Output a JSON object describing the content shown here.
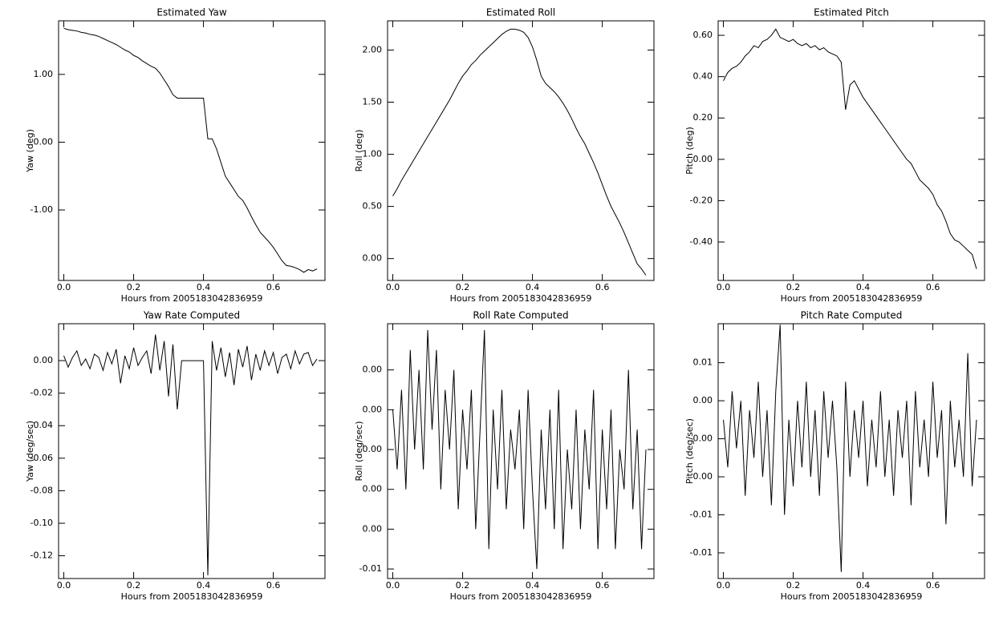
{
  "chart_data": [
    {
      "type": "line",
      "title": "Estimated Yaw",
      "xlabel": "Hours from 2005183042836959",
      "ylabel": "Yaw (deg)",
      "color": "#000000",
      "x": [
        0,
        0.0125,
        0.025,
        0.0375,
        0.05,
        0.0625,
        0.075,
        0.0875,
        0.1,
        0.1125,
        0.125,
        0.1375,
        0.15,
        0.1625,
        0.175,
        0.1875,
        0.2,
        0.2125,
        0.225,
        0.2375,
        0.25,
        0.2625,
        0.275,
        0.2875,
        0.3,
        0.3125,
        0.325,
        0.3375,
        0.35,
        0.3625,
        0.375,
        0.3875,
        0.4,
        0.4125,
        0.425,
        0.4375,
        0.45,
        0.4625,
        0.475,
        0.4875,
        0.5,
        0.5125,
        0.525,
        0.5375,
        0.55,
        0.5625,
        0.575,
        0.5875,
        0.6,
        0.6125,
        0.625,
        0.6375,
        0.65,
        0.6625,
        0.675,
        0.6875,
        0.7,
        0.7125,
        0.725
      ],
      "values": [
        1.68,
        1.66,
        1.65,
        1.64,
        1.62,
        1.61,
        1.59,
        1.58,
        1.56,
        1.53,
        1.5,
        1.47,
        1.44,
        1.4,
        1.36,
        1.33,
        1.28,
        1.25,
        1.2,
        1.16,
        1.12,
        1.09,
        1.02,
        0.92,
        0.82,
        0.7,
        0.65,
        0.65,
        0.65,
        0.65,
        0.65,
        0.65,
        0.65,
        0.05,
        0.05,
        -0.1,
        -0.3,
        -0.5,
        -0.6,
        -0.7,
        -0.8,
        -0.86,
        -0.97,
        -1.1,
        -1.22,
        -1.33,
        -1.4,
        -1.47,
        -1.55,
        -1.65,
        -1.75,
        -1.82,
        -1.83,
        -1.85,
        -1.88,
        -1.92,
        -1.88,
        -1.9,
        -1.87
      ],
      "xlim": [
        -0.015,
        0.748
      ],
      "xticks": [
        {
          "value": 0,
          "label": "0.0"
        },
        0.2,
        0.4,
        0.6
      ],
      "ylim": [
        -2.04,
        1.79
      ],
      "yticks": [
        {
          "value": 1,
          "label": "1.00"
        },
        {
          "value": 0,
          "label": "0.00"
        },
        {
          "value": -1,
          "label": "-1.00"
        }
      ]
    },
    {
      "type": "line",
      "title": "Estimated Roll",
      "xlabel": "Hours from 2005183042836959",
      "ylabel": "Roll (deg)",
      "color": "#000000",
      "x": [
        0,
        0.0125,
        0.025,
        0.0375,
        0.05,
        0.0625,
        0.075,
        0.0875,
        0.1,
        0.1125,
        0.125,
        0.1375,
        0.15,
        0.1625,
        0.175,
        0.1875,
        0.2,
        0.2125,
        0.225,
        0.2375,
        0.25,
        0.2625,
        0.275,
        0.2875,
        0.3,
        0.3125,
        0.325,
        0.3375,
        0.35,
        0.3625,
        0.375,
        0.3875,
        0.4,
        0.4125,
        0.425,
        0.4375,
        0.45,
        0.4625,
        0.475,
        0.4875,
        0.5,
        0.5125,
        0.525,
        0.5375,
        0.55,
        0.5625,
        0.575,
        0.5875,
        0.6,
        0.6125,
        0.625,
        0.6375,
        0.65,
        0.6625,
        0.675,
        0.6875,
        0.7,
        0.7125,
        0.725
      ],
      "values": [
        0.6,
        0.67,
        0.75,
        0.82,
        0.89,
        0.96,
        1.03,
        1.1,
        1.17,
        1.24,
        1.31,
        1.38,
        1.45,
        1.52,
        1.6,
        1.68,
        1.75,
        1.8,
        1.86,
        1.9,
        1.95,
        1.99,
        2.03,
        2.07,
        2.11,
        2.15,
        2.18,
        2.2,
        2.2,
        2.19,
        2.17,
        2.12,
        2.03,
        1.9,
        1.75,
        1.68,
        1.64,
        1.6,
        1.55,
        1.49,
        1.42,
        1.34,
        1.25,
        1.17,
        1.1,
        1.01,
        0.92,
        0.82,
        0.71,
        0.6,
        0.5,
        0.42,
        0.34,
        0.25,
        0.15,
        0.05,
        -0.05,
        -0.1,
        -0.16
      ],
      "xlim": [
        -0.015,
        0.748
      ],
      "xticks": [
        {
          "value": 0,
          "label": "0.0"
        },
        0.2,
        0.4,
        0.6
      ],
      "ylim": [
        -0.21,
        2.28
      ],
      "yticks": [
        {
          "value": 2,
          "label": "2.00"
        },
        {
          "value": 1.5,
          "label": "1.50"
        },
        {
          "value": 1,
          "label": "1.00"
        },
        {
          "value": 0.5,
          "label": "0.50"
        },
        {
          "value": 0,
          "label": "0.00"
        }
      ]
    },
    {
      "type": "line",
      "title": "Estimated Pitch",
      "xlabel": "Hours from 2005183042836959",
      "ylabel": "Pitch (deg)",
      "color": "#000000",
      "x": [
        0,
        0.0125,
        0.025,
        0.0375,
        0.05,
        0.0625,
        0.075,
        0.0875,
        0.1,
        0.1125,
        0.125,
        0.1375,
        0.15,
        0.1625,
        0.175,
        0.1875,
        0.2,
        0.2125,
        0.225,
        0.2375,
        0.25,
        0.2625,
        0.275,
        0.2875,
        0.3,
        0.3125,
        0.325,
        0.3375,
        0.35,
        0.3625,
        0.375,
        0.3875,
        0.4,
        0.4125,
        0.425,
        0.4375,
        0.45,
        0.4625,
        0.475,
        0.4875,
        0.5,
        0.5125,
        0.525,
        0.5375,
        0.55,
        0.5625,
        0.575,
        0.5875,
        0.6,
        0.6125,
        0.625,
        0.6375,
        0.65,
        0.6625,
        0.675,
        0.6875,
        0.7,
        0.7125,
        0.725
      ],
      "values": [
        0.38,
        0.42,
        0.44,
        0.45,
        0.47,
        0.5,
        0.52,
        0.55,
        0.54,
        0.57,
        0.58,
        0.6,
        0.63,
        0.59,
        0.58,
        0.57,
        0.58,
        0.56,
        0.55,
        0.56,
        0.54,
        0.55,
        0.53,
        0.54,
        0.52,
        0.51,
        0.5,
        0.47,
        0.24,
        0.36,
        0.38,
        0.34,
        0.3,
        0.27,
        0.24,
        0.21,
        0.18,
        0.15,
        0.12,
        0.09,
        0.06,
        0.03,
        0.0,
        -0.02,
        -0.06,
        -0.1,
        -0.12,
        -0.14,
        -0.17,
        -0.22,
        -0.25,
        -0.3,
        -0.36,
        -0.39,
        -0.4,
        -0.42,
        -0.44,
        -0.46,
        -0.53
      ],
      "xlim": [
        -0.015,
        0.748
      ],
      "xticks": [
        {
          "value": 0,
          "label": "0.0"
        },
        0.2,
        0.4,
        0.6
      ],
      "ylim": [
        -0.586,
        0.67
      ],
      "yticks": [
        {
          "value": 0.6,
          "label": "0.60"
        },
        {
          "value": 0.4,
          "label": "0.40"
        },
        {
          "value": 0.2,
          "label": "0.20"
        },
        {
          "value": 0,
          "label": "0.00"
        },
        {
          "value": -0.2,
          "label": "-0.20"
        },
        {
          "value": -0.4,
          "label": "-0.40"
        }
      ]
    },
    {
      "type": "line",
      "title": "Yaw Rate Computed",
      "xlabel": "Hours from 2005183042836959",
      "ylabel": "Yaw (deg/sec)",
      "color": "#000000",
      "x": [
        0,
        0.0125,
        0.025,
        0.0375,
        0.05,
        0.0625,
        0.075,
        0.0875,
        0.1,
        0.1125,
        0.125,
        0.1375,
        0.15,
        0.1625,
        0.175,
        0.1875,
        0.2,
        0.2125,
        0.225,
        0.2375,
        0.25,
        0.2625,
        0.275,
        0.2875,
        0.3,
        0.3125,
        0.325,
        0.3375,
        0.35,
        0.3625,
        0.375,
        0.3875,
        0.4,
        0.4125,
        0.425,
        0.4375,
        0.45,
        0.4625,
        0.475,
        0.4875,
        0.5,
        0.5125,
        0.525,
        0.5375,
        0.55,
        0.5625,
        0.575,
        0.5875,
        0.6,
        0.6125,
        0.625,
        0.6375,
        0.65,
        0.6625,
        0.675,
        0.6875,
        0.7,
        0.7125,
        0.725
      ],
      "values": [
        0.003,
        -0.004,
        0.002,
        0.006,
        -0.003,
        0.001,
        -0.005,
        0.004,
        0.002,
        -0.006,
        0.005,
        -0.002,
        0.007,
        -0.014,
        0.003,
        -0.005,
        0.008,
        -0.003,
        0.002,
        0.006,
        -0.008,
        0.016,
        -0.006,
        0.012,
        -0.022,
        0.01,
        -0.03,
        0,
        0,
        0,
        0,
        0,
        0,
        -0.132,
        0.012,
        -0.006,
        0.008,
        -0.01,
        0.005,
        -0.015,
        0.007,
        -0.004,
        0.009,
        -0.012,
        0.004,
        -0.006,
        0.006,
        -0.003,
        0.005,
        -0.008,
        0.002,
        0.004,
        -0.005,
        0.006,
        -0.002,
        0.004,
        0.005,
        -0.003,
        0.001
      ],
      "xlim": [
        -0.015,
        0.748
      ],
      "xticks": [
        {
          "value": 0,
          "label": "0.0"
        },
        0.2,
        0.4,
        0.6
      ],
      "ylim": [
        -0.134,
        0.0227
      ],
      "yticks": [
        {
          "value": 0,
          "label": "0.00"
        },
        {
          "value": -0.02,
          "label": "-0.02"
        },
        {
          "value": -0.04,
          "label": "-0.04"
        },
        {
          "value": -0.06,
          "label": "-0.06"
        },
        {
          "value": -0.08,
          "label": "-0.08"
        },
        {
          "value": -0.1,
          "label": "-0.10"
        },
        {
          "value": -0.12,
          "label": "-0.12"
        }
      ]
    },
    {
      "type": "line",
      "title": "Roll Rate Computed",
      "xlabel": "Hours from 2005183042836959",
      "ylabel": "Roll (deg/sec)",
      "color": "#000000",
      "x": [
        0,
        0.0125,
        0.025,
        0.0375,
        0.05,
        0.0625,
        0.075,
        0.0875,
        0.1,
        0.1125,
        0.125,
        0.1375,
        0.15,
        0.1625,
        0.175,
        0.1875,
        0.2,
        0.2125,
        0.225,
        0.2375,
        0.25,
        0.2625,
        0.275,
        0.2875,
        0.3,
        0.3125,
        0.325,
        0.3375,
        0.35,
        0.3625,
        0.375,
        0.3875,
        0.4,
        0.4125,
        0.425,
        0.4375,
        0.45,
        0.4625,
        0.475,
        0.4875,
        0.5,
        0.5125,
        0.525,
        0.5375,
        0.55,
        0.5625,
        0.575,
        0.5875,
        0.6,
        0.6125,
        0.625,
        0.6375,
        0.65,
        0.6625,
        0.675,
        0.6875,
        0.7,
        0.7125,
        0.725
      ],
      "values": [
        0.002,
        -0.001,
        0.003,
        -0.002,
        0.005,
        0.0,
        0.004,
        -0.001,
        0.006,
        0.001,
        0.005,
        -0.002,
        0.003,
        0.0,
        0.004,
        -0.003,
        0.002,
        -0.001,
        0.003,
        -0.004,
        0.001,
        0.006,
        -0.005,
        0.002,
        -0.002,
        0.003,
        -0.003,
        0.001,
        -0.001,
        0.002,
        -0.004,
        0.003,
        -0.002,
        -0.006,
        0.001,
        -0.003,
        0.002,
        -0.004,
        0.003,
        -0.005,
        0.0,
        -0.003,
        0.002,
        -0.004,
        0.001,
        -0.002,
        0.003,
        -0.005,
        0.001,
        -0.003,
        0.002,
        -0.005,
        0.0,
        -0.002,
        0.004,
        -0.003,
        0.001,
        -0.005,
        0.0
      ],
      "xlim": [
        -0.015,
        0.748
      ],
      "xticks": [
        {
          "value": 0,
          "label": "0.0"
        },
        0.2,
        0.4,
        0.6
      ],
      "ylim": [
        -0.00648,
        0.00632
      ],
      "yticks": [
        {
          "value": 0.004,
          "label": "0.00"
        },
        {
          "value": 0.002,
          "label": "0.00"
        },
        {
          "value": 0,
          "label": "0.00"
        },
        {
          "value": -0.002,
          "label": "0.00"
        },
        {
          "value": -0.004,
          "label": "0.00"
        },
        {
          "value": -0.006,
          "label": "-0.01"
        }
      ]
    },
    {
      "type": "line",
      "title": "Pitch Rate Computed",
      "xlabel": "Hours from 2005183042836959",
      "ylabel": "Pitch (deg/sec)",
      "color": "#000000",
      "x": [
        0,
        0.0125,
        0.025,
        0.0375,
        0.05,
        0.0625,
        0.075,
        0.0875,
        0.1,
        0.1125,
        0.125,
        0.1375,
        0.15,
        0.1625,
        0.175,
        0.1875,
        0.2,
        0.2125,
        0.225,
        0.2375,
        0.25,
        0.2625,
        0.275,
        0.2875,
        0.3,
        0.3125,
        0.325,
        0.3375,
        0.35,
        0.3625,
        0.375,
        0.3875,
        0.4,
        0.4125,
        0.425,
        0.4375,
        0.45,
        0.4625,
        0.475,
        0.4875,
        0.5,
        0.5125,
        0.525,
        0.5375,
        0.55,
        0.5625,
        0.575,
        0.5875,
        0.6,
        0.6125,
        0.625,
        0.6375,
        0.65,
        0.6625,
        0.675,
        0.6875,
        0.7,
        0.7125,
        0.725
      ],
      "values": [
        0.002,
        -0.003,
        0.005,
        -0.001,
        0.004,
        -0.006,
        0.003,
        -0.002,
        0.006,
        -0.004,
        0.003,
        -0.007,
        0.005,
        0.012,
        -0.008,
        0.002,
        -0.005,
        0.004,
        -0.003,
        0.006,
        -0.004,
        0.003,
        -0.006,
        0.005,
        -0.002,
        0.004,
        -0.003,
        -0.014,
        0.006,
        -0.004,
        0.003,
        -0.002,
        0.004,
        -0.005,
        0.002,
        -0.003,
        0.005,
        -0.004,
        0.002,
        -0.006,
        0.003,
        -0.002,
        0.004,
        -0.007,
        0.005,
        -0.003,
        0.002,
        -0.004,
        0.006,
        -0.002,
        0.003,
        -0.009,
        0.004,
        -0.003,
        0.002,
        -0.004,
        0.009,
        -0.005,
        0.002
      ],
      "xlim": [
        -0.015,
        0.748
      ],
      "xticks": [
        {
          "value": 0,
          "label": "0.0"
        },
        0.2,
        0.4,
        0.6
      ],
      "ylim": [
        -0.0147,
        0.0121
      ],
      "yticks": [
        {
          "value": 0.008,
          "label": "0.01"
        },
        {
          "value": 0.004,
          "label": "0.00"
        },
        {
          "value": 0,
          "label": "0.00"
        },
        {
          "value": -0.004,
          "label": "0.00"
        },
        {
          "value": -0.008,
          "label": "-0.01"
        },
        {
          "value": -0.012,
          "label": "-0.01"
        }
      ]
    }
  ]
}
